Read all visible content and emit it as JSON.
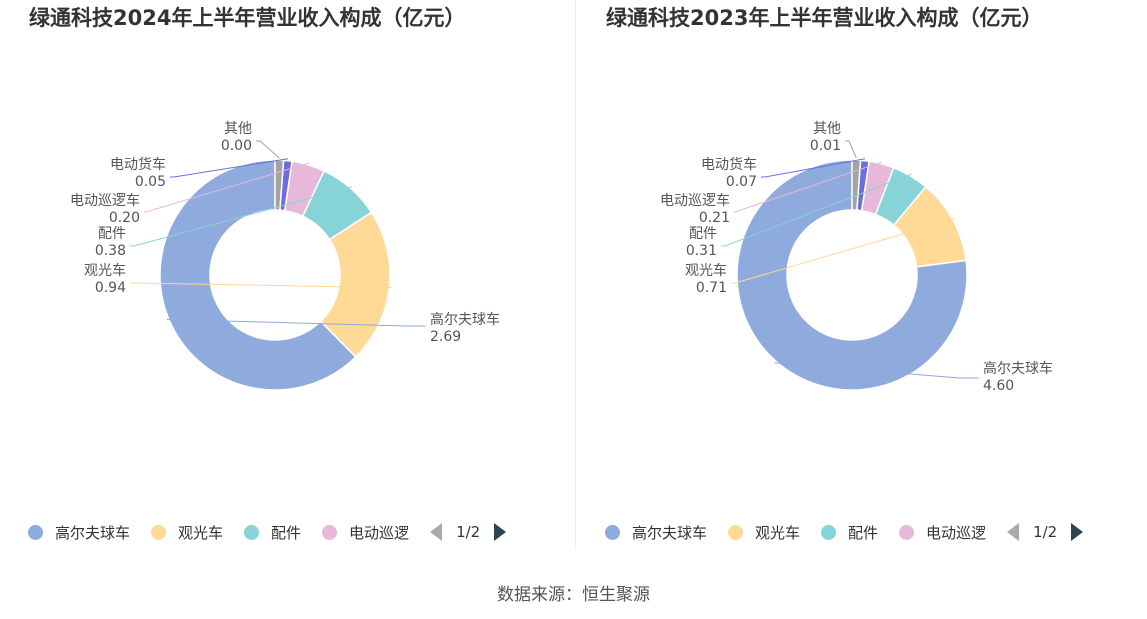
{
  "chart_data": [
    {
      "type": "pie",
      "title": "绿通科技2024年上半年营业收入构成（亿元）",
      "categories": [
        "高尔夫球车",
        "观光车",
        "配件",
        "电动巡逻车",
        "电动货车",
        "其他"
      ],
      "values": [
        2.69,
        0.94,
        0.38,
        0.2,
        0.05,
        0.0
      ],
      "value_labels": [
        "2.69",
        "0.94",
        "0.38",
        "0.20",
        "0.05",
        "0.00"
      ],
      "colors": [
        "#8faadc",
        "#ffd996",
        "#87d4d8",
        "#e6b8d9",
        "#6d6ddf",
        "#a3a3a3"
      ],
      "legend_visible": [
        "高尔夫球车",
        "观光车",
        "配件",
        "电动巡逻"
      ],
      "legend_position": "bottom",
      "pager": "1/2"
    },
    {
      "type": "pie",
      "title": "绿通科技2023年上半年营业收入构成（亿元）",
      "categories": [
        "高尔夫球车",
        "观光车",
        "配件",
        "电动巡逻车",
        "电动货车",
        "其他"
      ],
      "values": [
        4.6,
        0.71,
        0.31,
        0.21,
        0.07,
        0.01
      ],
      "value_labels": [
        "4.60",
        "0.71",
        "0.31",
        "0.21",
        "0.07",
        "0.01"
      ],
      "colors": [
        "#8faadc",
        "#ffd996",
        "#87d4d8",
        "#e6b8d9",
        "#6d6ddf",
        "#a3a3a3"
      ],
      "legend_visible": [
        "高尔夫球车",
        "观光车",
        "配件",
        "电动巡逻"
      ],
      "legend_position": "bottom",
      "pager": "1/2"
    }
  ],
  "source": "数据来源：恒生聚源"
}
